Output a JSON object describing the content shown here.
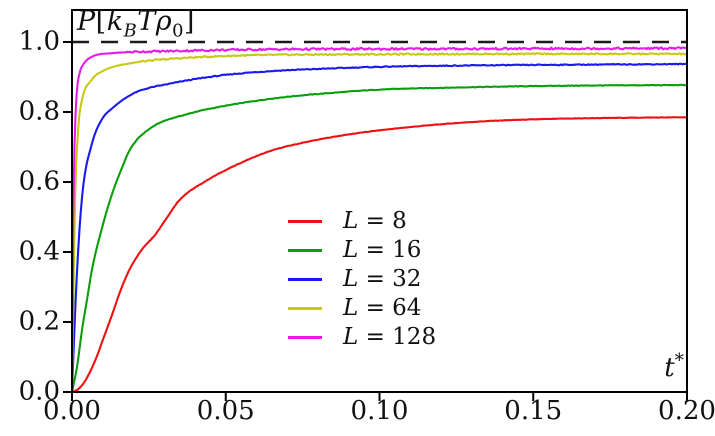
{
  "figure": {
    "background": "#ffffff",
    "text_color": "#111111",
    "axis_color": "#000000"
  },
  "chart_data": {
    "type": "line",
    "title_plain": "P[k_B T ρ_0]",
    "title_segments": [
      {
        "k": "t",
        "v": "P",
        "it": true
      },
      {
        "k": "t",
        "v": "[",
        "it": false
      },
      {
        "k": "t",
        "v": "k",
        "it": true
      },
      {
        "k": "sub",
        "v": "B",
        "it": true
      },
      {
        "k": "t",
        "v": "T",
        "it": true
      },
      {
        "k": "t",
        "v": "ρ",
        "it": true
      },
      {
        "k": "sub",
        "v": "0",
        "it": false
      },
      {
        "k": "t",
        "v": "]",
        "it": false
      }
    ],
    "xlabel_plain": "t*",
    "xlabel_segments": [
      {
        "k": "t",
        "v": "t",
        "it": true
      },
      {
        "k": "sup",
        "v": "*",
        "it": false
      }
    ],
    "ylabel": "",
    "xlim": [
      0,
      0.2
    ],
    "ylim": [
      0,
      1.09
    ],
    "grid": false,
    "legend_position": "inside center-left",
    "x_ticks": [
      {
        "v": 0.0,
        "label": "0.00"
      },
      {
        "v": 0.05,
        "label": "0.05"
      },
      {
        "v": 0.1,
        "label": "0.10"
      },
      {
        "v": 0.15,
        "label": "0.15"
      },
      {
        "v": 0.2,
        "label": "0.20"
      }
    ],
    "y_ticks": [
      {
        "v": 0.0,
        "label": "0.0"
      },
      {
        "v": 0.2,
        "label": "0.2"
      },
      {
        "v": 0.4,
        "label": "0.4"
      },
      {
        "v": 0.6,
        "label": "0.6"
      },
      {
        "v": 0.8,
        "label": "0.8"
      },
      {
        "v": 1.0,
        "label": "1.0"
      }
    ],
    "reference_line": {
      "y": 1.0,
      "style": "dashed",
      "color": "#1a1a1a"
    },
    "series": [
      {
        "name": "L = 8",
        "label_var": "L",
        "label_rest": " = 8",
        "color": "#ee1111",
        "noise": 0.0006,
        "points": [
          [
            0,
            0
          ],
          [
            0.002,
            0.008
          ],
          [
            0.004,
            0.028
          ],
          [
            0.006,
            0.06
          ],
          [
            0.008,
            0.1
          ],
          [
            0.01,
            0.148
          ],
          [
            0.013,
            0.22
          ],
          [
            0.016,
            0.295
          ],
          [
            0.019,
            0.355
          ],
          [
            0.023,
            0.41
          ],
          [
            0.027,
            0.449
          ],
          [
            0.031,
            0.5
          ],
          [
            0.035,
            0.549
          ],
          [
            0.043,
            0.6
          ],
          [
            0.055,
            0.655
          ],
          [
            0.065,
            0.69
          ],
          [
            0.075,
            0.712
          ],
          [
            0.09,
            0.736
          ],
          [
            0.11,
            0.757
          ],
          [
            0.133,
            0.773
          ],
          [
            0.155,
            0.78
          ],
          [
            0.175,
            0.783
          ],
          [
            0.2,
            0.785
          ]
        ]
      },
      {
        "name": "L = 16",
        "label_var": "L",
        "label_rest": " = 16",
        "color": "#0a9e0a",
        "noise": 0.0008,
        "points": [
          [
            0,
            0
          ],
          [
            0.0016,
            0.07
          ],
          [
            0.0033,
            0.18
          ],
          [
            0.005,
            0.27
          ],
          [
            0.0065,
            0.35
          ],
          [
            0.0098,
            0.47
          ],
          [
            0.013,
            0.565
          ],
          [
            0.016,
            0.635
          ],
          [
            0.019,
            0.695
          ],
          [
            0.0254,
            0.753
          ],
          [
            0.0384,
            0.796
          ],
          [
            0.0514,
            0.82
          ],
          [
            0.0676,
            0.841
          ],
          [
            0.085,
            0.855
          ],
          [
            0.1,
            0.864
          ],
          [
            0.125,
            0.87
          ],
          [
            0.15,
            0.874
          ],
          [
            0.175,
            0.876
          ],
          [
            0.2,
            0.877
          ]
        ]
      },
      {
        "name": "L = 32",
        "label_var": "L",
        "label_rest": " = 32",
        "color": "#1a1af0",
        "noise": 0.0012,
        "points": [
          [
            0,
            0
          ],
          [
            0.0008,
            0.18
          ],
          [
            0.0016,
            0.34
          ],
          [
            0.0033,
            0.56
          ],
          [
            0.0065,
            0.71
          ],
          [
            0.0098,
            0.78
          ],
          [
            0.013,
            0.81
          ],
          [
            0.02,
            0.853
          ],
          [
            0.0325,
            0.882
          ],
          [
            0.05,
            0.906
          ],
          [
            0.065,
            0.917
          ],
          [
            0.08,
            0.923
          ],
          [
            0.1,
            0.929
          ],
          [
            0.13,
            0.933
          ],
          [
            0.16,
            0.935
          ],
          [
            0.2,
            0.937
          ]
        ]
      },
      {
        "name": "L = 64",
        "label_var": "L",
        "label_rest": " = 64",
        "color": "#c9c914",
        "noise": 0.002,
        "points": [
          [
            0,
            0
          ],
          [
            0.0005,
            0.3
          ],
          [
            0.001,
            0.55
          ],
          [
            0.002,
            0.75
          ],
          [
            0.003,
            0.825
          ],
          [
            0.0065,
            0.893
          ],
          [
            0.01,
            0.917
          ],
          [
            0.013,
            0.928
          ],
          [
            0.02,
            0.941
          ],
          [
            0.0325,
            0.952
          ],
          [
            0.05,
            0.96
          ],
          [
            0.065,
            0.963
          ],
          [
            0.1,
            0.965
          ],
          [
            0.15,
            0.966
          ],
          [
            0.2,
            0.966
          ]
        ]
      },
      {
        "name": "L = 128",
        "label_var": "L",
        "label_rest": " = 128",
        "color": "#e61ae6",
        "noise": 0.0028,
        "points": [
          [
            0,
            0
          ],
          [
            0.0004,
            0.5
          ],
          [
            0.0008,
            0.7
          ],
          [
            0.0015,
            0.85
          ],
          [
            0.0025,
            0.912
          ],
          [
            0.00325,
            0.93
          ],
          [
            0.0065,
            0.958
          ],
          [
            0.013,
            0.968
          ],
          [
            0.0325,
            0.974
          ],
          [
            0.065,
            0.979
          ],
          [
            0.1,
            0.98
          ],
          [
            0.15,
            0.981
          ],
          [
            0.2,
            0.982
          ]
        ]
      }
    ]
  }
}
